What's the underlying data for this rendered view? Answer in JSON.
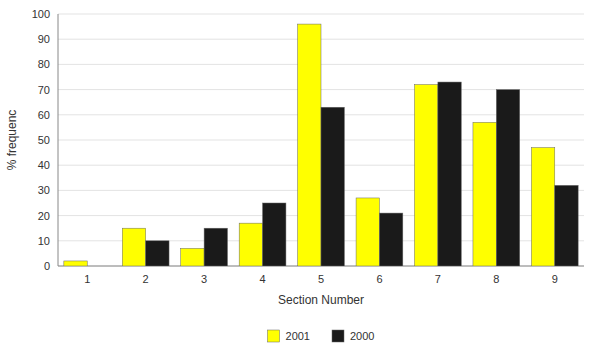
{
  "chart_data": {
    "type": "bar",
    "x_label": "Section Number",
    "y_label": "% frequenc",
    "categories": [
      "1",
      "2",
      "3",
      "4",
      "5",
      "6",
      "7",
      "8",
      "9"
    ],
    "series": [
      {
        "name": "2001",
        "color": "#ffff00",
        "values": [
          2,
          15,
          7,
          17,
          96,
          27,
          72,
          57,
          47
        ]
      },
      {
        "name": "2000",
        "color": "#1a1a1a",
        "values": [
          0,
          10,
          15,
          25,
          63,
          21,
          73,
          70,
          32
        ]
      }
    ],
    "ylim": [
      0,
      100
    ],
    "yticks": [
      0,
      10,
      20,
      30,
      40,
      50,
      60,
      70,
      80,
      90,
      100
    ],
    "grid": true,
    "legend": "bottom"
  }
}
